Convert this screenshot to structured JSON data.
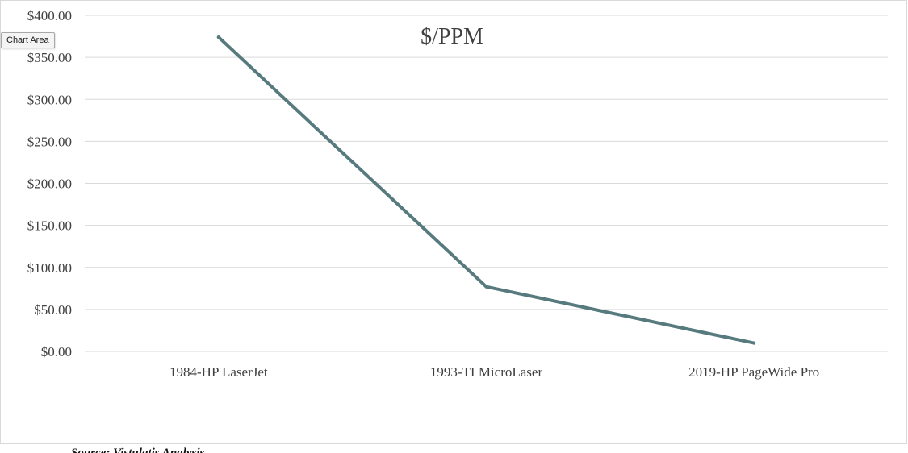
{
  "tooltip": {
    "label": "Chart Area"
  },
  "source": {
    "text": "Source: Vistulatis Analysis"
  },
  "colors": {
    "line": "#577a7e",
    "grid": "#d9d9d9",
    "axis_text": "#404040",
    "title": "#404040",
    "border": "#d9d9d9"
  },
  "chart_data": {
    "type": "line",
    "title": "$/PPM",
    "categories": [
      "1984-HP LaserJet",
      "1993-TI MicroLaser",
      "2019-HP PageWide Pro"
    ],
    "series": [
      {
        "values": [
          374,
          77,
          10
        ]
      }
    ],
    "y_ticks": [
      "$0.00",
      "$50.00",
      "$100.00",
      "$150.00",
      "$200.00",
      "$250.00",
      "$300.00",
      "$350.00",
      "$400.00"
    ],
    "y_tick_values": [
      0,
      50,
      100,
      150,
      200,
      250,
      300,
      350,
      400
    ],
    "ylim": [
      0,
      400
    ],
    "grid": true,
    "legend": "none"
  }
}
